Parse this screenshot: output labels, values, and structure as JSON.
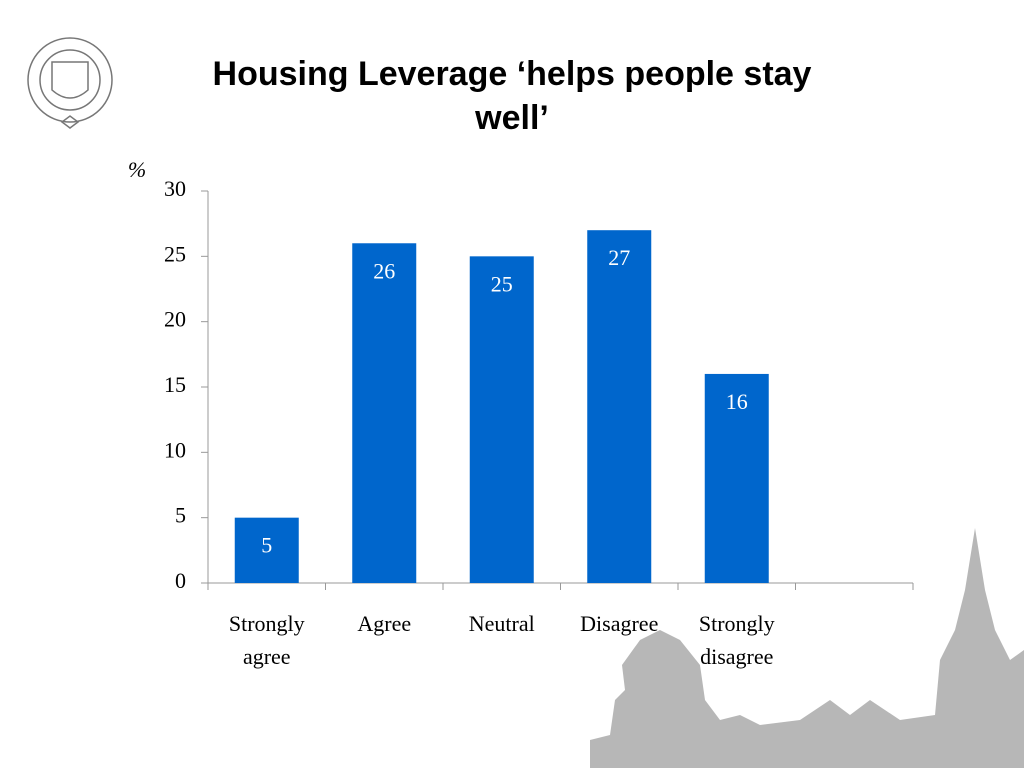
{
  "chart_data": {
    "type": "bar",
    "title": "Housing Leverage ‘helps people stay well’",
    "y_label": "%",
    "categories": [
      "Strongly agree",
      "Agree",
      "Neutral",
      "Disagree",
      "Strongly disagree",
      null
    ],
    "values": [
      5,
      26,
      25,
      27,
      16,
      null
    ],
    "color": "#0066cc",
    "ylim": [
      0,
      30
    ],
    "yticks": [
      0,
      5,
      10,
      15,
      20,
      25,
      30
    ],
    "grid": false
  }
}
